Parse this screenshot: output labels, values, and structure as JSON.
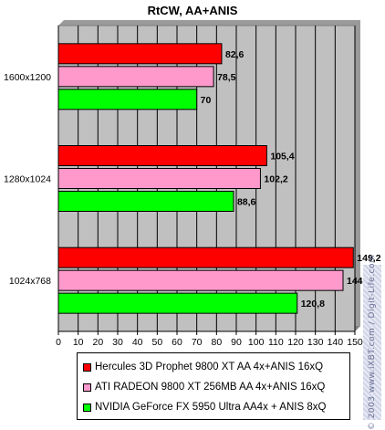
{
  "chart_data": {
    "type": "bar",
    "orientation": "horizontal",
    "title": "RtCW, AA+ANIS",
    "categories": [
      "1600x1200",
      "1280x1024",
      "1024x768"
    ],
    "series": [
      {
        "name": "Hercules 3D Prophet 9800 XT AA 4x+ANIS 16xQ",
        "color": "#ff0000",
        "values": [
          82.6,
          105.4,
          149.2
        ],
        "labels": [
          "82,6",
          "105,4",
          "149,2"
        ]
      },
      {
        "name": "ATI RADEON 9800 XT 256MB AA 4x+ANIS 16xQ",
        "color": "#ff99cc",
        "values": [
          78.5,
          102.2,
          144
        ],
        "labels": [
          "78,5",
          "102,2",
          "144"
        ]
      },
      {
        "name": "NVIDIA GeForce FX 5950 Ultra AA4x + ANIS 8xQ",
        "color": "#00ff00",
        "values": [
          70,
          88.6,
          120.8
        ],
        "labels": [
          "70",
          "88,6",
          "120,8"
        ]
      }
    ],
    "xlim": [
      0,
      150
    ],
    "xticks": [
      0,
      10,
      20,
      30,
      40,
      50,
      60,
      70,
      80,
      90,
      100,
      110,
      120,
      130,
      140,
      150
    ],
    "grid": "vertical",
    "legend_position": "bottom",
    "plot_background": "#c0c0c0"
  },
  "watermark": "© 2003 www.iXBT.com / Digit-Life.com"
}
